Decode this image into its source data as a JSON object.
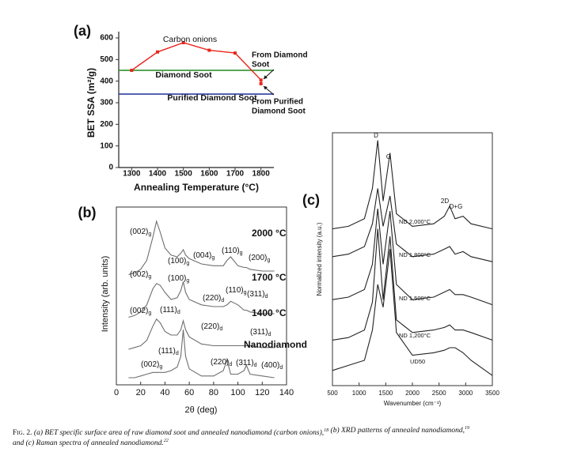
{
  "chart_data": [
    {
      "type": "line",
      "panel_label": "(a)",
      "xlabel": "Annealing Temperature (°C)",
      "ylabel": "BET SSA (m²/g)",
      "xlim": [
        1250,
        1850
      ],
      "ylim": [
        0,
        600
      ],
      "xticks": [
        1300,
        1400,
        1500,
        1600,
        1700,
        1800
      ],
      "yticks": [
        0,
        100,
        200,
        300,
        400,
        500,
        600
      ],
      "series": [
        {
          "name": "Carbon onions",
          "color": "#e8261c",
          "x": [
            1300,
            1400,
            1500,
            1600,
            1700,
            1800,
            1800
          ],
          "values": [
            450,
            535,
            578,
            543,
            530,
            405,
            388
          ]
        }
      ],
      "hlines": [
        {
          "name": "Diamond Soot",
          "color": "#1f8a1f",
          "value": 450
        },
        {
          "name": "Purified Diamond Soot",
          "color": "#2b3fa0",
          "value": 340
        }
      ],
      "annotations": [
        [
          "From Diamond",
          "Soot"
        ],
        [
          "From Purified",
          "Diamond Soot"
        ]
      ]
    },
    {
      "type": "line",
      "panel_label": "(b)",
      "xlabel": "2θ (deg)",
      "ylabel": "Intensity (arb. units)",
      "xlim": [
        0,
        140
      ],
      "ylim": [
        0,
        100
      ],
      "xticks": [
        0,
        20,
        40,
        60,
        80,
        100,
        120,
        140
      ],
      "x": [
        10,
        15,
        20,
        25,
        30,
        33,
        36,
        40,
        45,
        50,
        53,
        55,
        57,
        60,
        70,
        80,
        88,
        91,
        94,
        100,
        105,
        107,
        110,
        120,
        130
      ],
      "series": [
        {
          "name": "2000 °C",
          "color": "#6e6e6e",
          "values": [
            62,
            63,
            65,
            70,
            83,
            92,
            86,
            77,
            73,
            72,
            74,
            76,
            73,
            71,
            68,
            67,
            67,
            70,
            72,
            67,
            66,
            66,
            65,
            64,
            64
          ]
        },
        {
          "name": "1700 °C",
          "color": "#6e6e6e",
          "values": [
            38,
            39,
            41,
            45,
            54,
            57,
            56,
            52,
            48,
            49,
            53,
            58,
            52,
            48,
            45,
            44,
            44,
            45,
            47,
            45,
            42,
            42,
            41,
            40,
            40
          ]
        },
        {
          "name": "1400 °C",
          "color": "#6e6e6e",
          "values": [
            20,
            21,
            22,
            25,
            33,
            37,
            35,
            30,
            28,
            28,
            31,
            36,
            31,
            27,
            23,
            22,
            22,
            22,
            22,
            22,
            22,
            22,
            22,
            21,
            21
          ]
        },
        {
          "name": "Nanodiamond",
          "color": "#6e6e6e",
          "values": [
            4,
            4,
            5,
            6,
            7,
            7,
            7,
            7,
            8,
            10,
            16,
            31,
            16,
            9,
            5,
            5,
            8,
            14,
            6,
            6,
            8,
            11,
            6,
            5,
            4
          ]
        }
      ],
      "annotations": [
        {
          "text": "(002)",
          "sub": "g"
        },
        {
          "text": "(100)",
          "sub": "g"
        },
        {
          "text": "(004)",
          "sub": "g"
        },
        {
          "text": "(110)",
          "sub": "g"
        },
        {
          "text": "(200)",
          "sub": "g"
        },
        {
          "text": "(002)",
          "sub": "g"
        },
        {
          "text": "(100)",
          "sub": "g"
        },
        {
          "text": "(220)",
          "sub": "d"
        },
        {
          "text": "(110)",
          "sub": "g"
        },
        {
          "text": "(311)",
          "sub": "d"
        },
        {
          "text": "(002)",
          "sub": "g"
        },
        {
          "text": "(111)",
          "sub": "d"
        },
        {
          "text": "(220)",
          "sub": "d"
        },
        {
          "text": "(311)",
          "sub": "d"
        },
        {
          "text": "(111)",
          "sub": "d"
        },
        {
          "text": "(002)",
          "sub": "g"
        },
        {
          "text": "(220)",
          "sub": "d"
        },
        {
          "text": "(311)",
          "sub": "d"
        },
        {
          "text": "(400)",
          "sub": "d"
        }
      ]
    },
    {
      "type": "line",
      "panel_label": "(c)",
      "xlabel": "Wavenumber (cm⁻¹)",
      "ylabel": "Normalized intensity (a.u.)",
      "xlim": [
        500,
        3500
      ],
      "ylim": [
        0,
        100
      ],
      "xticks": [
        500,
        1000,
        1500,
        2000,
        2500,
        3000,
        3500
      ],
      "x": [
        500,
        800,
        1100,
        1250,
        1350,
        1450,
        1580,
        1700,
        2000,
        2400,
        2600,
        2700,
        2800,
        2950,
        3100,
        3500
      ],
      "series": [
        {
          "name": "ND 2,000°C",
          "color": "#222222",
          "values": [
            62,
            63,
            66,
            78,
            97,
            73,
            92,
            68,
            63,
            64,
            67,
            71,
            66,
            67,
            64,
            62
          ]
        },
        {
          "name": "ND 1,800°C",
          "color": "#222222",
          "values": [
            51,
            52,
            55,
            64,
            78,
            63,
            75,
            56,
            51,
            52,
            54,
            55,
            52,
            53,
            51,
            49
          ]
        },
        {
          "name": "ND 1,500°C",
          "color": "#222222",
          "values": [
            34,
            35,
            38,
            48,
            70,
            48,
            69,
            40,
            34,
            35,
            37,
            38,
            36,
            36,
            35,
            32
          ]
        },
        {
          "name": "ND 1,200°C",
          "color": "#222222",
          "values": [
            18,
            19,
            22,
            33,
            62,
            34,
            59,
            26,
            21,
            22,
            23,
            24,
            22,
            22,
            21,
            18
          ]
        },
        {
          "name": "UD50",
          "color": "#222222",
          "values": [
            6,
            8,
            10,
            22,
            40,
            31,
            54,
            21,
            12,
            13,
            14,
            15,
            15,
            13,
            10,
            4
          ]
        }
      ],
      "annotations": [
        {
          "text": "D"
        },
        {
          "text": "G"
        },
        {
          "text": "2D"
        },
        {
          "text": "D+G"
        }
      ]
    }
  ],
  "caption": {
    "label": "Fig. 2.",
    "parts": [
      {
        "text": " (a) BET specific surface area of raw diamond soot and annealed nanodiamond (carbon onions),"
      },
      {
        "sup": "18"
      },
      {
        "text": " (b) XRD patterns of annealed nanodiamond,"
      },
      {
        "sup": "19"
      },
      {
        "text": " and (c) Raman spectra of annealed nanodiamond."
      },
      {
        "sup": "22"
      }
    ]
  }
}
